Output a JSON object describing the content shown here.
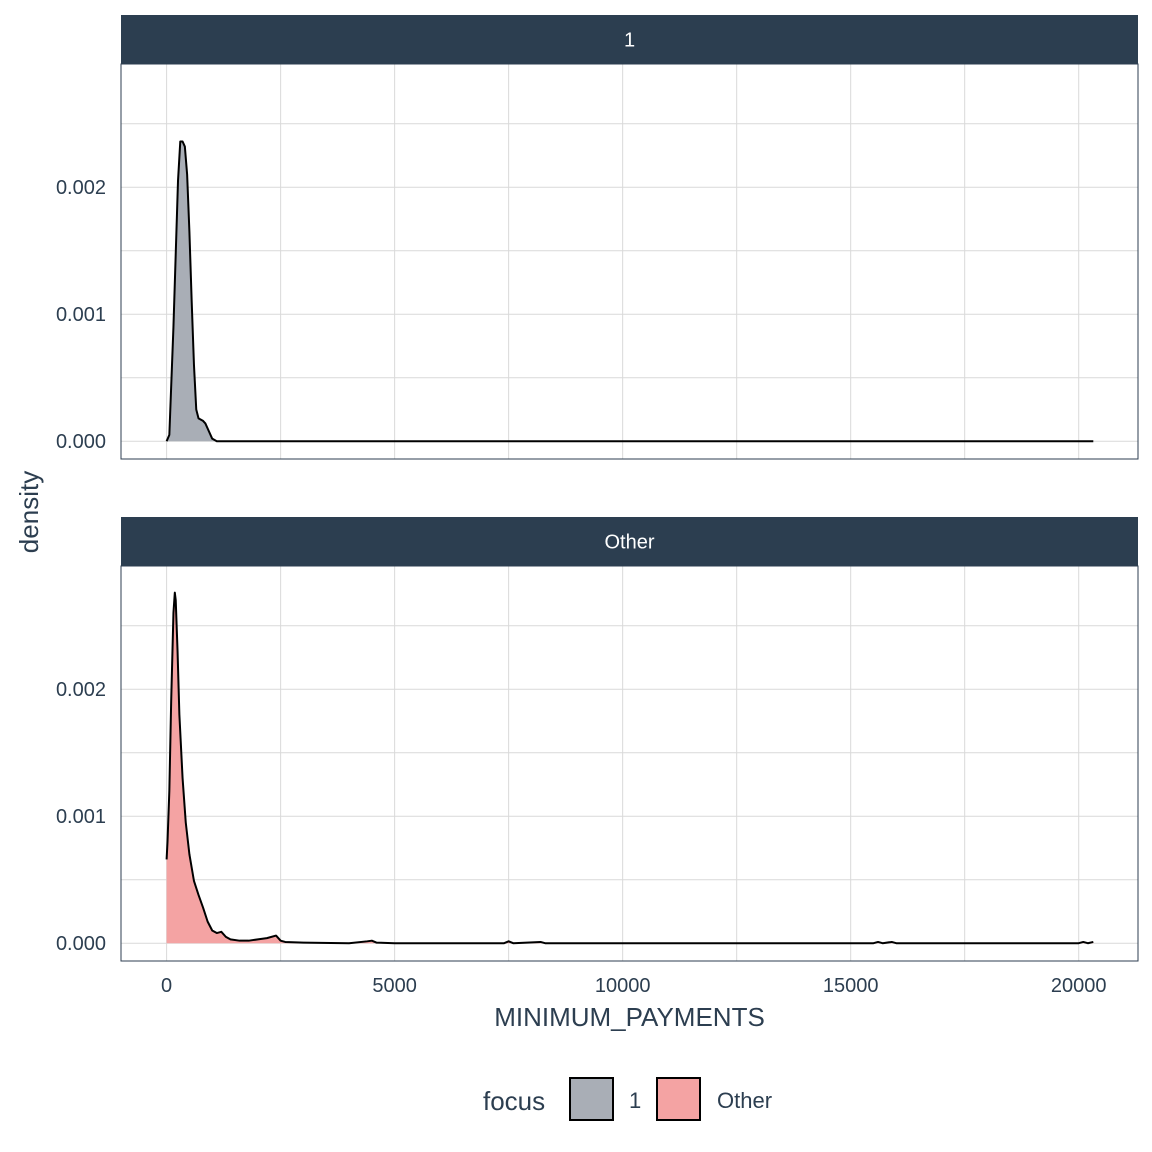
{
  "chart_data": {
    "type": "area",
    "subtype": "faceted density plot",
    "xlabel": "MINIMUM_PAYMENTS",
    "ylabel": "density",
    "xlim": [
      -1000,
      21300
    ],
    "x_ticks": [
      0,
      5000,
      10000,
      15000,
      20000
    ],
    "x_tick_labels": [
      "0",
      "5000",
      "10000",
      "15000",
      "20000"
    ],
    "y_ticks": [
      0,
      0.001,
      0.002
    ],
    "y_tick_labels": [
      "0.000",
      "0.001",
      "0.002"
    ],
    "grid": true,
    "legend": {
      "title": "focus",
      "position": "bottom",
      "entries": [
        {
          "label": "1",
          "color": "#a9aeb6"
        },
        {
          "label": "Other",
          "color": "#f4a3a3"
        }
      ]
    },
    "colors": {
      "strip": "#2c3e50",
      "line": "#000000",
      "grid": "#d9d9d9",
      "panel_border": "#2c3e50"
    },
    "facets": [
      {
        "strip_label": "1",
        "ylim": [
          -0.00014,
          0.00297
        ],
        "fill": "#a9aeb6",
        "series": {
          "name": "1",
          "x": [
            0,
            60,
            150,
            250,
            300,
            350,
            400,
            450,
            500,
            550,
            600,
            650,
            700,
            750,
            800,
            850,
            900,
            1000,
            1100,
            1200,
            2000,
            5000,
            10000,
            15000,
            20320
          ],
          "y": [
            0,
            5e-05,
            0.0009,
            0.00205,
            0.00236,
            0.00236,
            0.00232,
            0.0021,
            0.00165,
            0.0011,
            0.0006,
            0.00025,
            0.00018,
            0.00017,
            0.00016,
            0.00014,
            0.0001,
            2e-05,
            0,
            0,
            0,
            0,
            0,
            0,
            0
          ]
        }
      },
      {
        "strip_label": "Other",
        "ylim": [
          -0.00014,
          0.00297
        ],
        "fill": "#f4a3a3",
        "series": {
          "name": "Other",
          "x": [
            0,
            20,
            60,
            100,
            150,
            180,
            200,
            240,
            280,
            350,
            420,
            500,
            600,
            700,
            800,
            900,
            1000,
            1100,
            1200,
            1300,
            1400,
            1600,
            1800,
            2000,
            2200,
            2400,
            2500,
            2600,
            3000,
            4000,
            4400,
            4500,
            4600,
            5000,
            7400,
            7500,
            7600,
            8200,
            8300,
            10000,
            15500,
            15600,
            15700,
            15900,
            16000,
            16100,
            20000,
            20100,
            20200,
            20320
          ],
          "y": [
            0.00066,
            0.0008,
            0.0012,
            0.0019,
            0.0026,
            0.00276,
            0.0027,
            0.0023,
            0.0018,
            0.0013,
            0.00095,
            0.0007,
            0.00049,
            0.00038,
            0.00028,
            0.00017,
            0.0001,
            8e-05,
            9e-05,
            5e-05,
            3e-05,
            2e-05,
            2e-05,
            3e-05,
            4e-05,
            6e-05,
            2e-05,
            1e-05,
            5e-06,
            0,
            1.5e-05,
            2e-05,
            5e-06,
            0,
            0,
            1.5e-05,
            0,
            1e-05,
            0,
            0,
            0,
            1e-05,
            0,
            1e-05,
            0,
            0,
            0,
            1e-05,
            0,
            1e-05
          ]
        }
      }
    ]
  }
}
